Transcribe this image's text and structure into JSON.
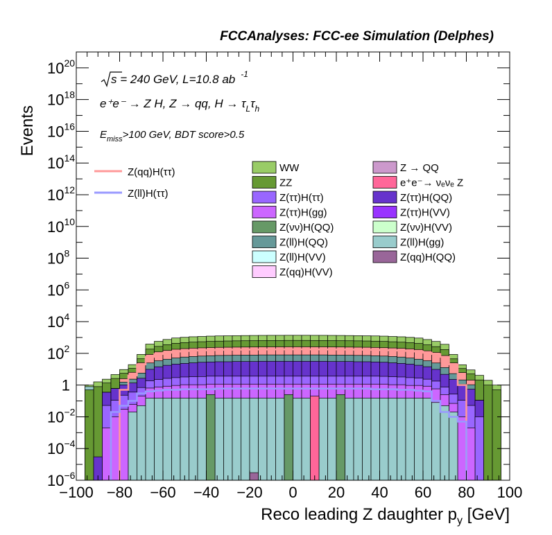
{
  "header": "FCCAnalyses: FCC-ee Simulation (Delphes)",
  "annotations": {
    "energy_prefix": "s",
    "energy_rest": " = 240 GeV, L=10.8 ab",
    "lumi_exp": "-1",
    "process_text": "e⁺e⁻ → Z H, Z → qq, H → τ",
    "tau_l": "L",
    "tau_h": "h",
    "cut_e": "E",
    "cut_miss": "miss",
    "cut_rest": ">100 GeV, BDT score>0.5"
  },
  "chart_data": {
    "type": "bar",
    "stacked": true,
    "y_scale": "log",
    "title": "FCCAnalyses: FCC-ee Simulation (Delphes)",
    "xlabel": "Reco leading Z daughter p",
    "xlabel_sub": "y",
    "xlabel_unit": " [GeV]",
    "ylabel": "Events",
    "xlim": [
      -100,
      100
    ],
    "ylim": [
      1e-06,
      1e+21
    ],
    "x_ticks": [
      "−100",
      "−80",
      "−60",
      "−40",
      "−20",
      "0",
      "20",
      "40",
      "60",
      "80",
      "100"
    ],
    "x_tick_values": [
      -100,
      -80,
      -60,
      -40,
      -20,
      0,
      20,
      40,
      60,
      80,
      100
    ],
    "y_ticks": [
      {
        "exp": 20,
        "base": "10",
        "sup": "20"
      },
      {
        "exp": 18,
        "base": "10",
        "sup": "18"
      },
      {
        "exp": 16,
        "base": "10",
        "sup": "16"
      },
      {
        "exp": 14,
        "base": "10",
        "sup": "14"
      },
      {
        "exp": 12,
        "base": "10",
        "sup": "12"
      },
      {
        "exp": 10,
        "base": "10",
        "sup": "10"
      },
      {
        "exp": 8,
        "base": "10",
        "sup": "8"
      },
      {
        "exp": 6,
        "base": "10",
        "sup": "6"
      },
      {
        "exp": 4,
        "base": "10",
        "sup": "4"
      },
      {
        "exp": 2,
        "base": "10",
        "sup": "2"
      },
      {
        "exp": 0,
        "base": "1",
        "sup": ""
      },
      {
        "exp": -2,
        "base": "10",
        "sup": "−2"
      },
      {
        "exp": -4,
        "base": "10",
        "sup": "−4"
      },
      {
        "exp": -6,
        "base": "10",
        "sup": "−6"
      }
    ],
    "grid": false,
    "legend_position": "upper-middle",
    "bin_edges": [
      -96,
      -92,
      -88,
      -84,
      -80,
      -76,
      -72,
      -68,
      -64,
      -60,
      -56,
      -52,
      -48,
      -44,
      -40,
      -36,
      -32,
      -28,
      -24,
      -20,
      -16,
      -12,
      -8,
      -4,
      0,
      4,
      8,
      12,
      16,
      20,
      24,
      28,
      32,
      36,
      40,
      44,
      48,
      52,
      56,
      60,
      64,
      68,
      72,
      76,
      80,
      84,
      88,
      92,
      96
    ],
    "stack_layers": [
      {
        "name": "Z(ll)H(gg)",
        "color": "#99cccc",
        "values": [
          1e-07,
          1e-07,
          1e-07,
          1e-07,
          1e-07,
          0.02,
          0.05,
          0.15,
          0.15,
          0.15,
          0.15,
          0.15,
          0.15,
          0.15,
          0.15,
          0.15,
          0.15,
          0.15,
          0.15,
          0.15,
          0.15,
          0.15,
          0.15,
          0.15,
          0.15,
          0.15,
          0.15,
          0.15,
          0.15,
          0.15,
          0.15,
          0.15,
          0.15,
          0.15,
          0.15,
          0.15,
          0.15,
          0.15,
          0.15,
          0.15,
          0.08,
          0.05,
          0.02,
          1e-07,
          1e-07,
          1e-07,
          1e-07,
          1e-07
        ]
      },
      {
        "name": "Z(ττ)H(gg)",
        "color": "#cc66ff",
        "values": [
          1e-07,
          1e-07,
          0.002,
          0.01,
          0.03,
          0.04,
          0.15,
          0.5,
          0.6,
          0.7,
          0.8,
          0.9,
          0.9,
          0.9,
          1.0,
          1.0,
          1.0,
          1.0,
          1.0,
          1.0,
          1.0,
          1.0,
          1.0,
          1.0,
          1.0,
          1.0,
          1.0,
          1.0,
          1.0,
          1.0,
          1.0,
          1.0,
          1.0,
          1.0,
          1.0,
          0.9,
          0.9,
          0.8,
          0.8,
          0.7,
          0.5,
          0.2,
          0.05,
          0.01,
          0.002,
          1e-07,
          1e-07,
          1e-07
        ]
      },
      {
        "name": "Z(ττ)H(ττ)",
        "color": "#9966ff",
        "values": [
          1e-07,
          1e-07,
          0.05,
          0.1,
          0.2,
          0.3,
          0.5,
          1.2,
          1.5,
          1.8,
          2.0,
          2.2,
          2.3,
          2.4,
          2.5,
          2.5,
          2.5,
          2.5,
          2.5,
          2.5,
          2.5,
          2.5,
          2.5,
          2.5,
          2.5,
          2.5,
          2.5,
          2.5,
          2.5,
          2.5,
          2.5,
          2.5,
          2.5,
          2.5,
          2.4,
          2.3,
          2.2,
          2.0,
          1.8,
          1.5,
          1.2,
          0.5,
          0.2,
          0.1,
          0.05,
          0.01,
          1e-07,
          1e-07
        ]
      },
      {
        "name": "Z(ττ)H(QQ)",
        "color": "#6633cc",
        "values": [
          1e-07,
          1e-07,
          0.3,
          0.5,
          0.8,
          1.0,
          2,
          8,
          12,
          15,
          18,
          20,
          22,
          24,
          25,
          26,
          26,
          27,
          27,
          27,
          28,
          28,
          28,
          28,
          28,
          28,
          28,
          28,
          27,
          27,
          27,
          26,
          26,
          25,
          24,
          22,
          20,
          18,
          15,
          12,
          8,
          4,
          2,
          1.0,
          0.5,
          0.1,
          1e-07,
          1e-07
        ]
      },
      {
        "name": "Z(ll)H(QQ)",
        "color": "#669999",
        "values": [
          1e-07,
          1e-07,
          1e-07,
          1e-07,
          0.5,
          1.0,
          3,
          15,
          20,
          25,
          30,
          35,
          38,
          40,
          42,
          44,
          45,
          46,
          47,
          47,
          48,
          48,
          48,
          48,
          48,
          48,
          48,
          48,
          47,
          47,
          46,
          45,
          44,
          42,
          40,
          38,
          35,
          30,
          25,
          20,
          15,
          8,
          3,
          1.0,
          0.5,
          1e-07,
          1e-07,
          1e-07
        ]
      },
      {
        "name": "Z(qq)H(ττ)",
        "color": "#ff9999",
        "values": [
          1e-07,
          1e-07,
          1e-07,
          1e-07,
          1.0,
          4,
          20,
          60,
          90,
          110,
          130,
          140,
          150,
          155,
          160,
          165,
          168,
          170,
          172,
          174,
          175,
          176,
          177,
          178,
          178,
          178,
          177,
          176,
          175,
          174,
          172,
          170,
          168,
          165,
          160,
          155,
          150,
          140,
          130,
          110,
          90,
          60,
          20,
          4,
          1.0,
          1e-07,
          1e-07,
          1e-07
        ]
      },
      {
        "name": "ZZ",
        "color": "#669933",
        "values": [
          0.5,
          0.8,
          1.0,
          2,
          3,
          5,
          20,
          100,
          150,
          200,
          250,
          280,
          300,
          320,
          340,
          350,
          360,
          370,
          375,
          380,
          385,
          390,
          390,
          395,
          395,
          395,
          390,
          390,
          385,
          380,
          375,
          370,
          360,
          350,
          340,
          320,
          300,
          280,
          250,
          200,
          150,
          100,
          20,
          5,
          3,
          2,
          1.0,
          0.5
        ]
      },
      {
        "name": "WW",
        "color": "#99cc66",
        "values": [
          0.5,
          0.8,
          1.0,
          2,
          4,
          8,
          40,
          200,
          300,
          400,
          500,
          550,
          600,
          620,
          650,
          670,
          680,
          690,
          700,
          710,
          715,
          720,
          720,
          725,
          725,
          725,
          720,
          720,
          715,
          710,
          700,
          690,
          680,
          670,
          650,
          620,
          600,
          550,
          500,
          400,
          300,
          200,
          40,
          8,
          4,
          2,
          1.0,
          0.5
        ]
      }
    ],
    "single_bars": [
      {
        "name": "Z(νν)H(QQ)",
        "color": "#669966",
        "x_range": [
          -40,
          -36
        ],
        "value": 0.25
      },
      {
        "name": "Z(νν)H(QQ)",
        "color": "#669966",
        "x_range": [
          -4,
          0
        ],
        "value": 0.25
      },
      {
        "name": "Z(νν)H(QQ)",
        "color": "#669966",
        "x_range": [
          20,
          24
        ],
        "value": 0.25
      },
      {
        "name": "e⁺e⁻→ νₑνₑ Z",
        "color": "#ff6699",
        "x_range": [
          8,
          12
        ],
        "value": 0.2
      },
      {
        "name": "Z(qq)H(QQ)",
        "color": "#996699",
        "x_range": [
          -20,
          -16
        ],
        "value": 3e-06
      },
      {
        "name": "Z(ll)H(gg)",
        "color": "#99cccc",
        "x_range": [
          -96,
          -92
        ],
        "value": 0.8
      },
      {
        "name": "ZZ",
        "color": "#669933",
        "x_range": [
          -96,
          -92
        ],
        "value": 0.5
      },
      {
        "name": "Z(ττ)H(QQ)",
        "color": "#6633cc",
        "x_range": [
          -92,
          -88
        ],
        "value": 3e-05
      }
    ],
    "overlay_lines": [
      {
        "name": "Z(qq)H(ττ)",
        "color": "#ff9999",
        "x": [
          -80,
          -76,
          -72,
          -68,
          -64,
          -60,
          -56,
          -52,
          -48,
          -44,
          -40,
          -36,
          -32,
          -28,
          -24,
          -20,
          -16,
          -12,
          -8,
          -4,
          0,
          4,
          8,
          12,
          16,
          20,
          24,
          28,
          32,
          36,
          40,
          44,
          48,
          52,
          56,
          60,
          64,
          68,
          72,
          76
        ],
        "y": [
          0.5,
          4,
          20,
          60,
          90,
          110,
          130,
          140,
          150,
          155,
          160,
          165,
          168,
          170,
          172,
          174,
          175,
          176,
          177,
          178,
          178,
          178,
          177,
          176,
          175,
          174,
          172,
          170,
          168,
          165,
          160,
          155,
          150,
          140,
          130,
          110,
          90,
          60,
          20,
          1
        ]
      },
      {
        "name": "Z(ll)H(ττ)",
        "color": "#9999ff",
        "x": [
          -84,
          -80,
          -76,
          -72,
          -68,
          -64,
          -60,
          -56,
          -52,
          -48,
          -44,
          -40,
          -36,
          -32,
          -28,
          -24,
          -20,
          -16,
          -12,
          -8,
          -4,
          0,
          4,
          8,
          12,
          16,
          20,
          24,
          28,
          32,
          36,
          40,
          44,
          48,
          52,
          56,
          60,
          64,
          68,
          72,
          76
        ],
        "y": [
          0.02,
          0.05,
          0.1,
          0.3,
          0.4,
          0.45,
          0.5,
          0.5,
          0.55,
          0.55,
          0.55,
          0.55,
          0.6,
          0.6,
          0.6,
          0.6,
          0.6,
          0.6,
          0.6,
          0.6,
          0.6,
          0.6,
          0.6,
          0.6,
          0.6,
          0.6,
          0.6,
          0.6,
          0.6,
          0.6,
          0.55,
          0.55,
          0.55,
          0.5,
          0.5,
          0.45,
          0.4,
          0.1,
          0.02,
          0.01,
          0.005
        ]
      }
    ],
    "legend_lines": [
      {
        "name": "Z(qq)H(ττ)",
        "color": "#ff9999"
      },
      {
        "name": "Z(ll)H(ττ)",
        "color": "#9999ff"
      }
    ],
    "legend_boxes": [
      {
        "name": "WW",
        "color": "#99cc66"
      },
      {
        "name": "Z → QQ",
        "color": "#cc99cc"
      },
      {
        "name": "ZZ",
        "color": "#669933"
      },
      {
        "name": "e⁺e⁻→ νₑνₑ Z",
        "color": "#ff6699"
      },
      {
        "name": "Z(ττ)H(ττ)",
        "color": "#9966ff"
      },
      {
        "name": "Z(ττ)H(QQ)",
        "color": "#6633cc"
      },
      {
        "name": "Z(ττ)H(gg)",
        "color": "#cc66ff"
      },
      {
        "name": "Z(ττ)H(VV)",
        "color": "#9933ff"
      },
      {
        "name": "Z(νν)H(QQ)",
        "color": "#669966"
      },
      {
        "name": "Z(νν)H(VV)",
        "color": "#ccffcc"
      },
      {
        "name": "Z(ll)H(QQ)",
        "color": "#669999"
      },
      {
        "name": "Z(ll)H(gg)",
        "color": "#99cccc"
      },
      {
        "name": "Z(ll)H(VV)",
        "color": "#ccffff"
      },
      {
        "name": "Z(qq)H(QQ)",
        "color": "#996699"
      },
      {
        "name": "Z(qq)H(VV)",
        "color": "#ffccff"
      }
    ]
  }
}
